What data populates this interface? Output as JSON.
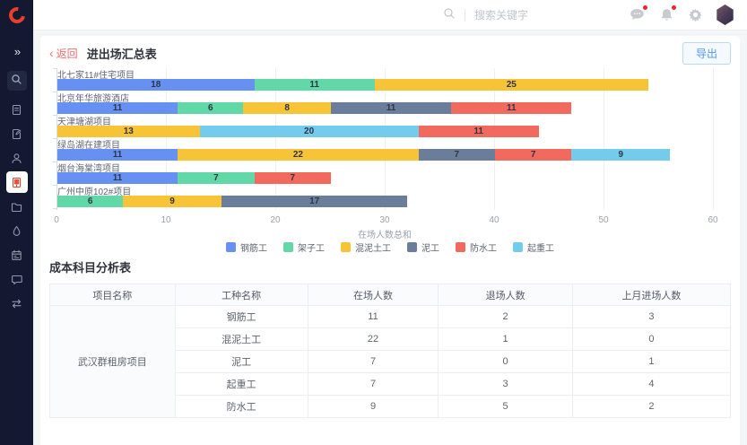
{
  "sidebar": {
    "collapse_icon": "»",
    "items": [
      {
        "icon": "search"
      },
      {
        "icon": "report-document"
      },
      {
        "icon": "document-edit"
      },
      {
        "icon": "user"
      },
      {
        "icon": "building",
        "active": true
      },
      {
        "icon": "folder"
      },
      {
        "icon": "water-drop"
      },
      {
        "icon": "calendar"
      },
      {
        "icon": "chat"
      },
      {
        "icon": "transfer"
      }
    ],
    "accent_color": "#E8402D",
    "bg_color": "#141830"
  },
  "topbar": {
    "search_placeholder": "搜索关键字",
    "icons": [
      "message",
      "bell",
      "gear",
      "avatar"
    ],
    "badge_color": "#F5222D"
  },
  "page": {
    "back_label": "返回",
    "back_chevron": "‹",
    "title": "进出场汇总表",
    "export_label": "导出"
  },
  "chart_data": {
    "type": "bar",
    "orientation": "horizontal",
    "stacked": true,
    "xlabel": "在场人数总和",
    "xlim": [
      0,
      60
    ],
    "xticks": [
      0,
      10,
      20,
      30,
      40,
      50,
      60
    ],
    "grid": true,
    "legend_position": "bottom",
    "legend": [
      "钢筋工",
      "架子工",
      "混泥土工",
      "泥工",
      "防水工",
      "起重工"
    ],
    "series_colors": {
      "钢筋工": "#6691F2",
      "架子工": "#62D8A8",
      "混泥土工": "#F7C337",
      "泥工": "#6A7E9C",
      "防水工": "#F26A5E",
      "起重工": "#74CCEC"
    },
    "categories": [
      "北七家11#住宅项目",
      "北京年华旅游酒店",
      "天津塘湖项目",
      "绿岛湖在建项目",
      "烟台海棠湾项目",
      "广州中原102#项目"
    ],
    "bars": [
      {
        "category": "北七家11#住宅项目",
        "segments": [
          {
            "name": "钢筋工",
            "value": 18
          },
          {
            "name": "架子工",
            "value": 11
          },
          {
            "name": "混泥土工",
            "value": 25
          }
        ]
      },
      {
        "category": "北京年华旅游酒店",
        "segments": [
          {
            "name": "钢筋工",
            "value": 11
          },
          {
            "name": "架子工",
            "value": 6
          },
          {
            "name": "混泥土工",
            "value": 8
          },
          {
            "name": "泥工",
            "value": 11
          },
          {
            "name": "防水工",
            "value": 11
          }
        ]
      },
      {
        "category": "天津塘湖项目",
        "segments": [
          {
            "name": "混泥土工",
            "value": 13
          },
          {
            "name": "起重工",
            "value": 20
          },
          {
            "name": "防水工",
            "value": 11
          }
        ]
      },
      {
        "category": "绿岛湖在建项目",
        "segments": [
          {
            "name": "钢筋工",
            "value": 11
          },
          {
            "name": "混泥土工",
            "value": 22
          },
          {
            "name": "泥工",
            "value": 7
          },
          {
            "name": "防水工",
            "value": 7
          },
          {
            "name": "起重工",
            "value": 9
          }
        ]
      },
      {
        "category": "烟台海棠湾项目",
        "segments": [
          {
            "name": "钢筋工",
            "value": 11
          },
          {
            "name": "架子工",
            "value": 7
          },
          {
            "name": "防水工",
            "value": 7
          }
        ]
      },
      {
        "category": "广州中原102#项目",
        "segments": [
          {
            "name": "架子工",
            "value": 6
          },
          {
            "name": "混泥土工",
            "value": 9
          },
          {
            "name": "泥工",
            "value": 17
          }
        ]
      }
    ]
  },
  "cost_table": {
    "section_title": "成本科目分析表",
    "columns": [
      "项目名称",
      "工种名称",
      "在场人数",
      "退场人数",
      "上月进场人数"
    ],
    "project": "武汉群租房项目",
    "rows": [
      {
        "worker": "钢筋工",
        "onsite": "11",
        "exited": "2",
        "last_month_entered": "3"
      },
      {
        "worker": "混泥土工",
        "onsite": "22",
        "exited": "1",
        "last_month_entered": "0"
      },
      {
        "worker": "泥工",
        "onsite": "7",
        "exited": "0",
        "last_month_entered": "1"
      },
      {
        "worker": "起重工",
        "onsite": "7",
        "exited": "3",
        "last_month_entered": "4"
      },
      {
        "worker": "防水工",
        "onsite": "9",
        "exited": "5",
        "last_month_entered": "2"
      }
    ]
  }
}
